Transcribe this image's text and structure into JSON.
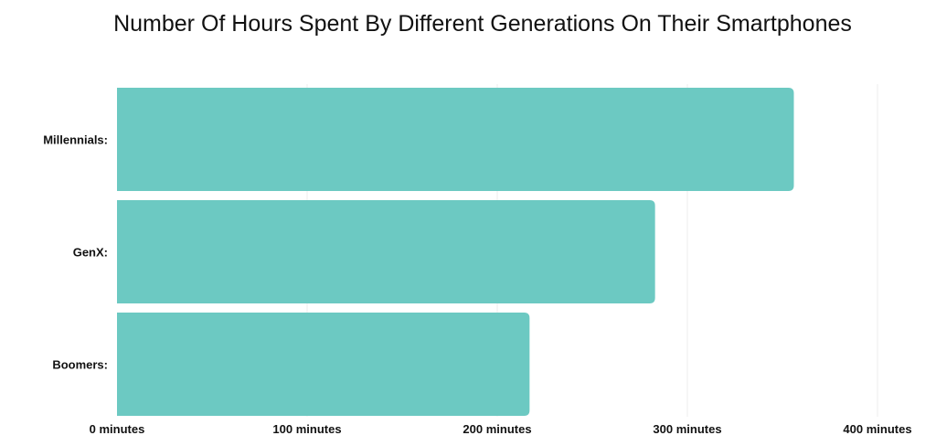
{
  "chart_data": {
    "type": "bar",
    "orientation": "horizontal",
    "title": "Number Of Hours Spent By Different Generations On Their Smartphones",
    "categories": [
      "Millennials:",
      "GenX:",
      "Boomers:"
    ],
    "values": [
      356,
      283,
      217
    ],
    "xlabel": "",
    "ylabel": "",
    "xlim": [
      0,
      400
    ],
    "x_ticks": [
      0,
      100,
      200,
      300,
      400
    ],
    "x_tick_labels": [
      "0 minutes",
      "100 minutes",
      "200 minutes",
      "300 minutes",
      "400 minutes"
    ],
    "grid": true,
    "legend": "none",
    "bar_color": "#6cc9c2"
  }
}
